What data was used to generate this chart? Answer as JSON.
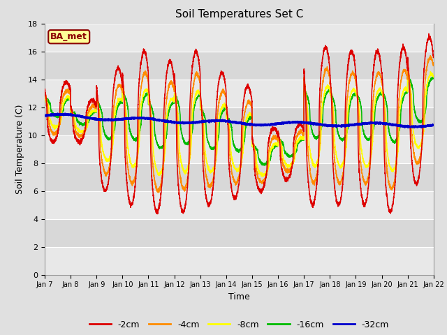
{
  "title": "Soil Temperatures Set C",
  "xlabel": "Time",
  "ylabel": "Soil Temperature (C)",
  "ylim": [
    0,
    18
  ],
  "yticks": [
    0,
    2,
    4,
    6,
    8,
    10,
    12,
    14,
    16,
    18
  ],
  "background_color": "#e0e0e0",
  "plot_bg_color": "#f2f2f2",
  "annotation_text": "BA_met",
  "annotation_color": "#8b0000",
  "annotation_bg": "#ffff99",
  "colors": {
    "-2cm": "#dd0000",
    "-4cm": "#ff8c00",
    "-8cm": "#ffff00",
    "-16cm": "#00bb00",
    "-32cm": "#0000cc"
  },
  "x_tick_labels": [
    "Jan 7",
    "Jan 8",
    "Jan 9",
    "Jan 10",
    "Jan 11",
    "Jan 12",
    "Jan 13",
    "Jan 14",
    "Jan 15",
    "Jan 16",
    "Jan 17",
    "Jan 18",
    "Jan 19",
    "Jan 20",
    "Jan 21",
    "Jan 22"
  ],
  "band_colors": [
    "#e8e8e8",
    "#d8d8d8"
  ],
  "figsize": [
    6.4,
    4.8
  ],
  "dpi": 100
}
